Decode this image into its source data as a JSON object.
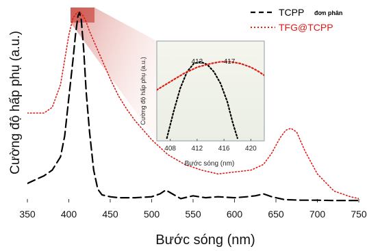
{
  "chart_data": [
    {
      "type": "line",
      "xlabel": "Bước sóng (nm)",
      "ylabel": "Cường độ hấp phụ (a.u.)",
      "xlim": [
        350,
        750
      ],
      "ylim": [
        0,
        1.0
      ],
      "x_ticks": [
        "350",
        "400",
        "450",
        "500",
        "550",
        "600",
        "650",
        "700",
        "750"
      ],
      "legend_position": "top-right",
      "series": [
        {
          "name": "TCPP đơn phân",
          "color": "#000000",
          "style": "dashed",
          "legend_label": "TCPP",
          "legend_sublabel": "đơn phân",
          "x": [
            350,
            360,
            370,
            380,
            390,
            395,
            400,
            405,
            408,
            411,
            413,
            415,
            418,
            421,
            425,
            430,
            435,
            440,
            450,
            460,
            480,
            500,
            510,
            517,
            525,
            535,
            550,
            565,
            580,
            600,
            615,
            625,
            635,
            645,
            660,
            680,
            700,
            720,
            750
          ],
          "y": [
            0.1,
            0.12,
            0.14,
            0.17,
            0.24,
            0.35,
            0.55,
            0.75,
            0.88,
            0.98,
            1.0,
            0.96,
            0.8,
            0.58,
            0.37,
            0.17,
            0.07,
            0.04,
            0.03,
            0.025,
            0.025,
            0.03,
            0.045,
            0.065,
            0.045,
            0.02,
            0.035,
            0.025,
            0.03,
            0.025,
            0.03,
            0.035,
            0.045,
            0.03,
            0.015,
            0.012,
            0.012,
            0.01,
            0.01
          ]
        },
        {
          "name": "TFG@TCPP",
          "color": "#e01a14",
          "style": "dotted",
          "legend_label": "TFG@TCPP",
          "x": [
            350,
            360,
            370,
            380,
            390,
            395,
            400,
            405,
            410,
            413,
            416,
            420,
            425,
            430,
            440,
            450,
            460,
            470,
            480,
            490,
            500,
            520,
            540,
            560,
            580,
            600,
            620,
            635,
            645,
            655,
            662,
            668,
            675,
            685,
            700,
            720,
            740,
            750
          ],
          "y": [
            0.47,
            0.47,
            0.47,
            0.5,
            0.62,
            0.75,
            0.88,
            0.97,
            1.0,
            1.0,
            0.99,
            0.96,
            0.9,
            0.85,
            0.75,
            0.65,
            0.56,
            0.49,
            0.43,
            0.38,
            0.33,
            0.25,
            0.2,
            0.17,
            0.15,
            0.16,
            0.17,
            0.2,
            0.26,
            0.34,
            0.38,
            0.39,
            0.37,
            0.27,
            0.15,
            0.06,
            0.03,
            0.02
          ]
        }
      ]
    },
    {
      "type": "line",
      "xlabel": "Bước sóng (nm)",
      "ylabel": "Cường độ hấp phụ (a.u.)",
      "xlim": [
        406,
        422
      ],
      "ylim": [
        0,
        1.0
      ],
      "x_ticks": [
        "408",
        "412",
        "416",
        "420"
      ],
      "annotations": [
        {
          "text": "412",
          "x": 412,
          "color": "#333333"
        },
        {
          "text": "417",
          "x": 416.8,
          "color": "#e01a14"
        }
      ],
      "series": [
        {
          "name": "TCPP đơn phân",
          "color": "#000000",
          "style": "dotted",
          "x": [
            407.5,
            408.5,
            409.5,
            410.5,
            411.5,
            412.5,
            413.5,
            414.5,
            415.5,
            416.5,
            417.3,
            418
          ],
          "y": [
            0.03,
            0.32,
            0.58,
            0.76,
            0.85,
            0.87,
            0.84,
            0.76,
            0.63,
            0.43,
            0.2,
            0.03
          ]
        },
        {
          "name": "TFG@TCPP",
          "color": "#e01a14",
          "style": "dotted",
          "x": [
            406,
            408,
            410,
            412,
            414,
            415.5,
            417,
            418.5,
            420,
            421,
            422
          ],
          "y": [
            0.56,
            0.65,
            0.74,
            0.81,
            0.85,
            0.87,
            0.87,
            0.85,
            0.81,
            0.77,
            0.72
          ]
        }
      ]
    }
  ]
}
